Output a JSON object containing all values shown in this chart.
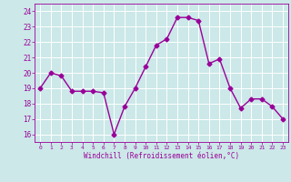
{
  "x": [
    0,
    1,
    2,
    3,
    4,
    5,
    6,
    7,
    8,
    9,
    10,
    11,
    12,
    13,
    14,
    15,
    16,
    17,
    18,
    19,
    20,
    21,
    22,
    23
  ],
  "y": [
    19,
    20,
    19.8,
    18.8,
    18.8,
    18.8,
    18.7,
    16.0,
    17.8,
    19.0,
    20.4,
    21.8,
    22.2,
    23.6,
    23.6,
    23.4,
    20.6,
    20.9,
    19.0,
    17.7,
    18.3,
    18.3,
    17.8,
    17.0
  ],
  "line_color": "#990099",
  "marker": "D",
  "marker_size": 2.5,
  "bg_color": "#cce8e8",
  "grid_color": "#ffffff",
  "xlabel": "Windchill (Refroidissement éolien,°C)",
  "ylim": [
    15.5,
    24.5
  ],
  "yticks": [
    16,
    17,
    18,
    19,
    20,
    21,
    22,
    23,
    24
  ],
  "xticks": [
    0,
    1,
    2,
    3,
    4,
    5,
    6,
    7,
    8,
    9,
    10,
    11,
    12,
    13,
    14,
    15,
    16,
    17,
    18,
    19,
    20,
    21,
    22,
    23
  ],
  "axis_color": "#990099",
  "tick_color": "#990099",
  "label_color": "#990099",
  "line_width": 1.0
}
